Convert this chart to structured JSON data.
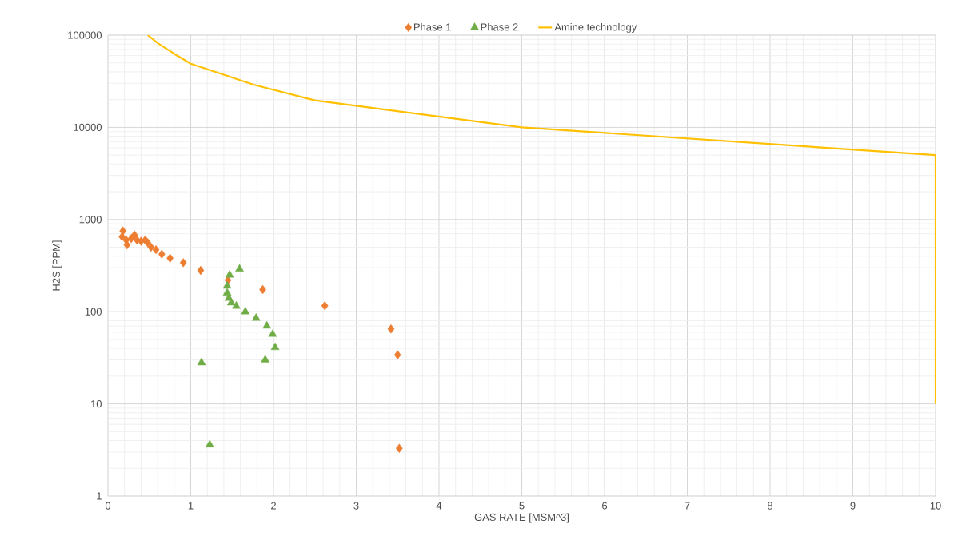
{
  "chart_data": {
    "type": "scatter",
    "xlabel": "GAS RATE [MSM^3]",
    "ylabel": "H2S [PPM]",
    "xlim": [
      0,
      10
    ],
    "ylim": [
      1,
      100000
    ],
    "log": "y",
    "grid": true,
    "legend": "top",
    "xticks": [
      0,
      1,
      2,
      3,
      4,
      5,
      6,
      7,
      8,
      9,
      10
    ],
    "yticks": [
      1,
      10,
      100,
      1000,
      10000,
      100000
    ],
    "series": [
      {
        "name": "Phase 1",
        "marker": "diamond",
        "color": "#ed7d31",
        "x": [
          0.17,
          0.18,
          0.22,
          0.23,
          0.28,
          0.32,
          0.35,
          0.4,
          0.45,
          0.48,
          0.52,
          0.58,
          0.65,
          0.75,
          0.91,
          1.12,
          1.45,
          1.87,
          2.62,
          3.42,
          3.5,
          3.52
        ],
        "values": [
          650,
          750,
          600,
          530,
          620,
          680,
          600,
          580,
          600,
          560,
          500,
          470,
          420,
          380,
          340,
          280,
          220,
          174,
          116,
          65,
          34,
          3.3
        ]
      },
      {
        "name": "Phase 2",
        "marker": "triangle",
        "color": "#70ad47",
        "x": [
          1.13,
          1.23,
          1.59,
          1.47,
          1.44,
          1.44,
          1.46,
          1.49,
          1.55,
          1.66,
          1.79,
          1.92,
          1.99,
          2.02,
          1.9
        ],
        "values": [
          28,
          3.6,
          290,
          250,
          190,
          160,
          140,
          125,
          115,
          100,
          85,
          70,
          57,
          41,
          30
        ]
      },
      {
        "name": "Amine technology",
        "type": "line",
        "marker": "none",
        "line_style": "solid",
        "color": "#ffc000",
        "x": [
          0.48,
          0.61,
          0.81,
          1.0,
          1.76,
          2.5,
          5,
          10,
          10
        ],
        "values": [
          100000,
          81000,
          62000,
          49000,
          29000,
          19600,
          10000,
          5000,
          10
        ]
      }
    ]
  }
}
